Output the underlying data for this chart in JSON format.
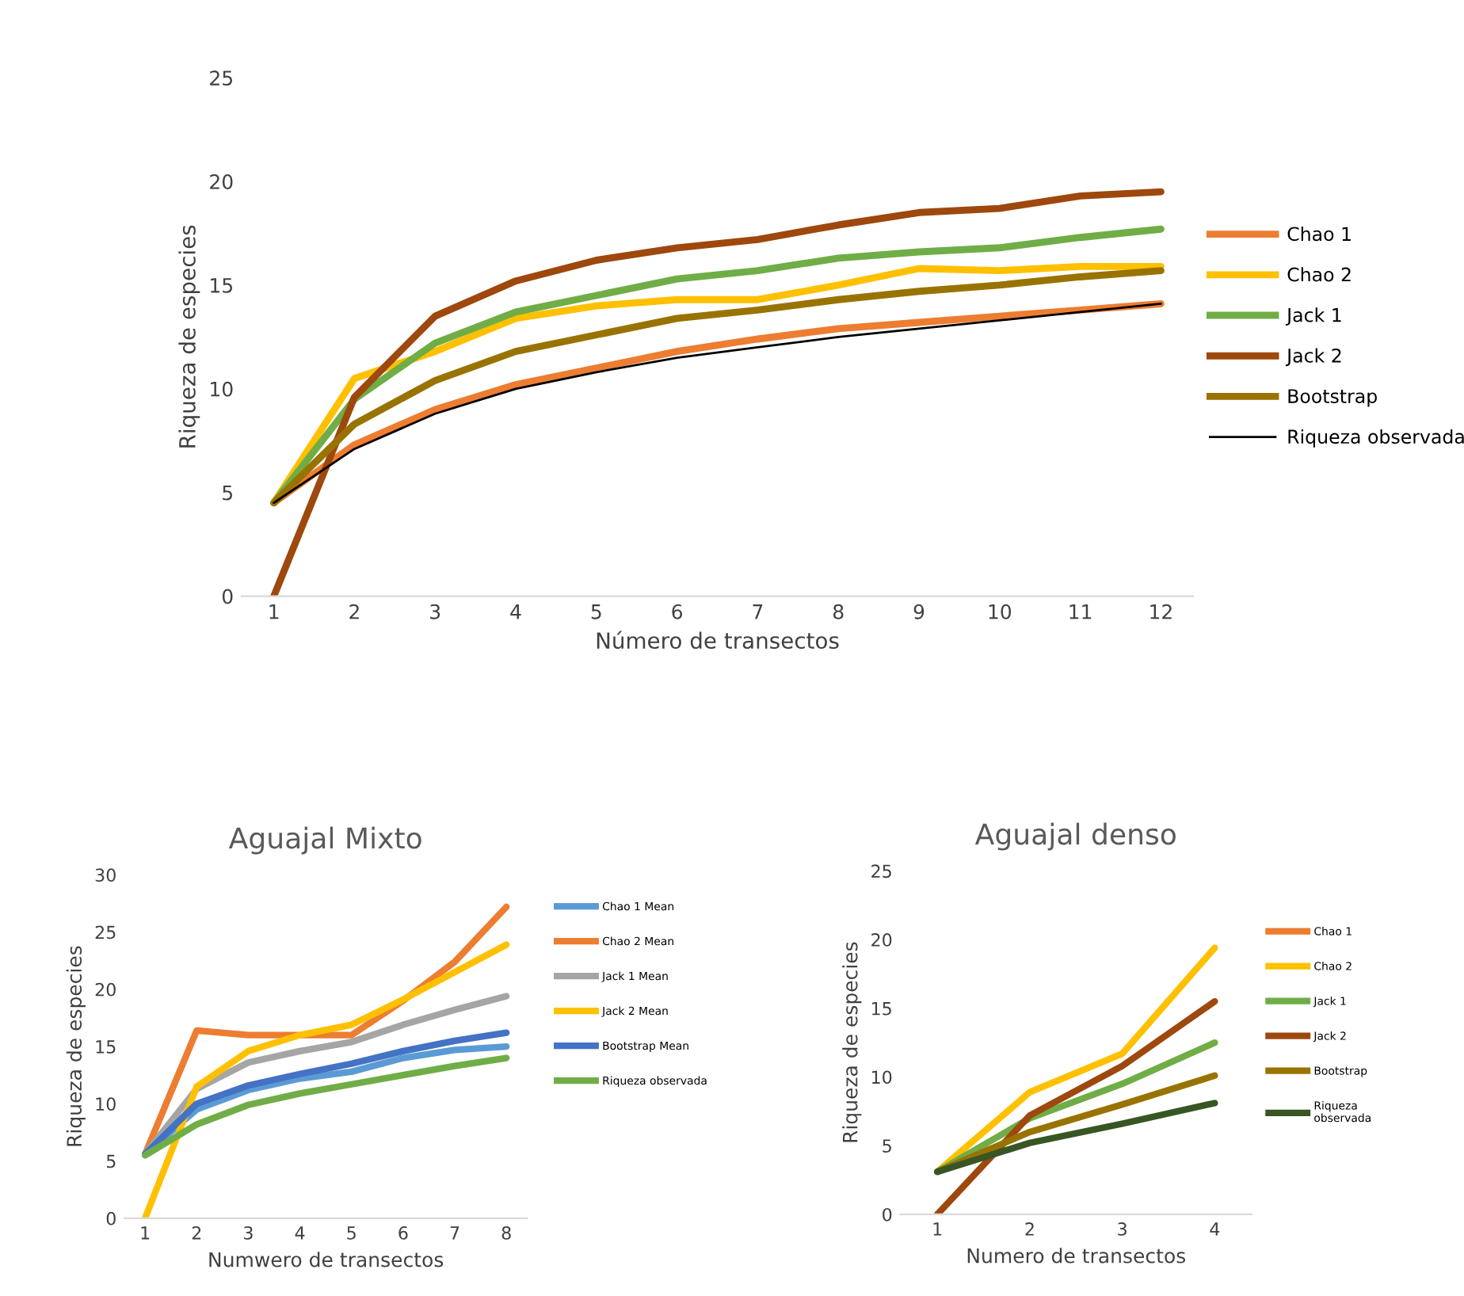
{
  "chart_data": [
    {
      "type": "line",
      "xlabel": "Número de transectos",
      "ylabel": "Riqueza de especies",
      "categories": [
        "1",
        "2",
        "3",
        "4",
        "5",
        "6",
        "7",
        "8",
        "9",
        "10",
        "11",
        "12"
      ],
      "ylim": [
        0,
        25
      ],
      "yticks": [
        0,
        5,
        10,
        15,
        20,
        25
      ],
      "grid": false,
      "legend": "right",
      "marker": "none",
      "series": [
        {
          "name": "Chao 1",
          "color": "#ed7d31",
          "values": [
            4.5,
            7.3,
            9.0,
            10.2,
            11.0,
            11.8,
            12.4,
            12.9,
            13.2,
            13.5,
            13.8,
            14.1
          ]
        },
        {
          "name": "Chao 2",
          "color": "#ffc000",
          "values": [
            4.5,
            10.5,
            11.8,
            13.4,
            14.0,
            14.3,
            14.3,
            15.0,
            15.8,
            15.7,
            15.9,
            15.9
          ]
        },
        {
          "name": "Jack 1",
          "color": "#70ad47",
          "values": [
            4.5,
            9.5,
            12.2,
            13.7,
            14.5,
            15.3,
            15.7,
            16.3,
            16.6,
            16.8,
            17.3,
            17.7
          ]
        },
        {
          "name": "Jack 2",
          "color": "#9e480e",
          "values": [
            0,
            9.6,
            13.5,
            15.2,
            16.2,
            16.8,
            17.2,
            17.9,
            18.5,
            18.7,
            19.3,
            19.5
          ]
        },
        {
          "name": "Bootstrap",
          "color": "#997300",
          "values": [
            4.5,
            8.3,
            10.4,
            11.8,
            12.6,
            13.4,
            13.8,
            14.3,
            14.7,
            15.0,
            15.4,
            15.7
          ]
        },
        {
          "name": "Riqueza observada",
          "color": "#000000",
          "values": [
            4.5,
            7.1,
            8.8,
            10.0,
            10.8,
            11.5,
            12.0,
            12.5,
            12.9,
            13.3,
            13.7,
            14.1
          ]
        }
      ]
    },
    {
      "type": "line",
      "title": "Aguajal Mixto",
      "xlabel": "Numwero de transectos",
      "ylabel": "Riqueza de especies",
      "categories": [
        "1",
        "2",
        "3",
        "4",
        "5",
        "6",
        "7",
        "8"
      ],
      "ylim": [
        0,
        30
      ],
      "yticks": [
        0,
        5,
        10,
        15,
        20,
        25,
        30
      ],
      "grid": false,
      "legend": "top right",
      "marker": "none",
      "series": [
        {
          "name": "Chao 1 Mean",
          "color": "#5b9bd5",
          "values": [
            5.6,
            9.5,
            11.2,
            12.2,
            12.8,
            14.0,
            14.7,
            15.0
          ]
        },
        {
          "name": "Chao 2 Mean",
          "color": "#ed7d31",
          "values": [
            5.6,
            16.4,
            16.0,
            16.0,
            16.0,
            19.0,
            22.4,
            27.2
          ]
        },
        {
          "name": "Jack 1 Mean",
          "color": "#a5a5a5",
          "values": [
            5.6,
            11.3,
            13.6,
            14.6,
            15.4,
            16.9,
            18.2,
            19.4
          ]
        },
        {
          "name": "Jack 2 Mean",
          "color": "#ffc000",
          "values": [
            0,
            11.5,
            14.6,
            16.0,
            16.9,
            19.1,
            21.5,
            23.9
          ]
        },
        {
          "name": "Bootstrap Mean",
          "color": "#4472c4",
          "values": [
            5.6,
            10.0,
            11.6,
            12.6,
            13.5,
            14.6,
            15.5,
            16.2
          ]
        },
        {
          "name": "Riqueza observada",
          "color": "#70ad47",
          "values": [
            5.5,
            8.2,
            9.9,
            10.9,
            11.7,
            12.5,
            13.3,
            14.0
          ]
        }
      ]
    },
    {
      "type": "line",
      "title": "Aguajal denso",
      "xlabel": "Numero de transectos",
      "ylabel": "Riqueza de especies",
      "categories": [
        "1",
        "2",
        "3",
        "4"
      ],
      "ylim": [
        0,
        25
      ],
      "yticks": [
        0,
        5,
        10,
        15,
        20,
        25
      ],
      "grid": false,
      "legend": "right",
      "marker": "none",
      "series": [
        {
          "name": "Chao 1",
          "color": "#ed7d31",
          "values": [
            null,
            null,
            null,
            null
          ]
        },
        {
          "name": "Chao 2",
          "color": "#ffc000",
          "values": [
            3.1,
            8.9,
            11.7,
            19.4
          ]
        },
        {
          "name": "Jack 1",
          "color": "#70ad47",
          "values": [
            3.1,
            7.0,
            9.5,
            12.5
          ]
        },
        {
          "name": "Jack 2",
          "color": "#9e480e",
          "values": [
            0,
            7.2,
            10.8,
            15.5
          ]
        },
        {
          "name": "Bootstrap",
          "color": "#997300",
          "values": [
            3.1,
            6.0,
            8.0,
            10.1
          ]
        },
        {
          "name": "Riqueza\nobservada",
          "color": "#375623",
          "values": [
            3.1,
            5.2,
            6.6,
            8.1
          ]
        }
      ]
    }
  ]
}
